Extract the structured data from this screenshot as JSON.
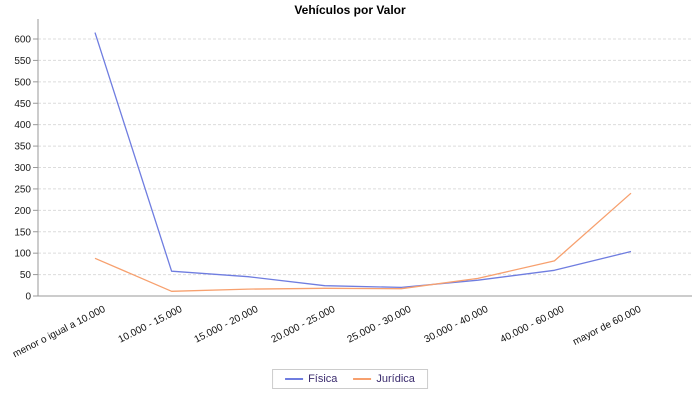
{
  "chart_data": {
    "type": "line",
    "title": "Vehículos por Valor",
    "xlabel": "",
    "ylabel": "",
    "categories": [
      "menor o igual a 10.000",
      "10.000 - 15.000",
      "15.000 - 20.000",
      "20.000 - 25.000",
      "25.000 - 30.000",
      "30.000 - 40.000",
      "40.000 - 60.000",
      "mayor de 60.000"
    ],
    "series": [
      {
        "name": "Física",
        "color": "#6f7de0",
        "values": [
          615,
          58,
          45,
          24,
          20,
          37,
          60,
          104
        ]
      },
      {
        "name": "Jurídica",
        "color": "#f7a06e",
        "values": [
          88,
          11,
          16,
          18,
          17,
          41,
          82,
          240
        ]
      }
    ],
    "ylim": [
      0,
      620
    ],
    "y_ticks": [
      0,
      50,
      100,
      150,
      200,
      250,
      300,
      350,
      400,
      450,
      500,
      550,
      600
    ],
    "grid": true,
    "grid_style": "dashed",
    "legend_position": "bottom",
    "colors": {
      "legend_text": "#3b2c6e",
      "axis": "#999999",
      "grid": "#dcdcdc",
      "tick_label": "#1a1a1a",
      "title": "#000000"
    }
  }
}
